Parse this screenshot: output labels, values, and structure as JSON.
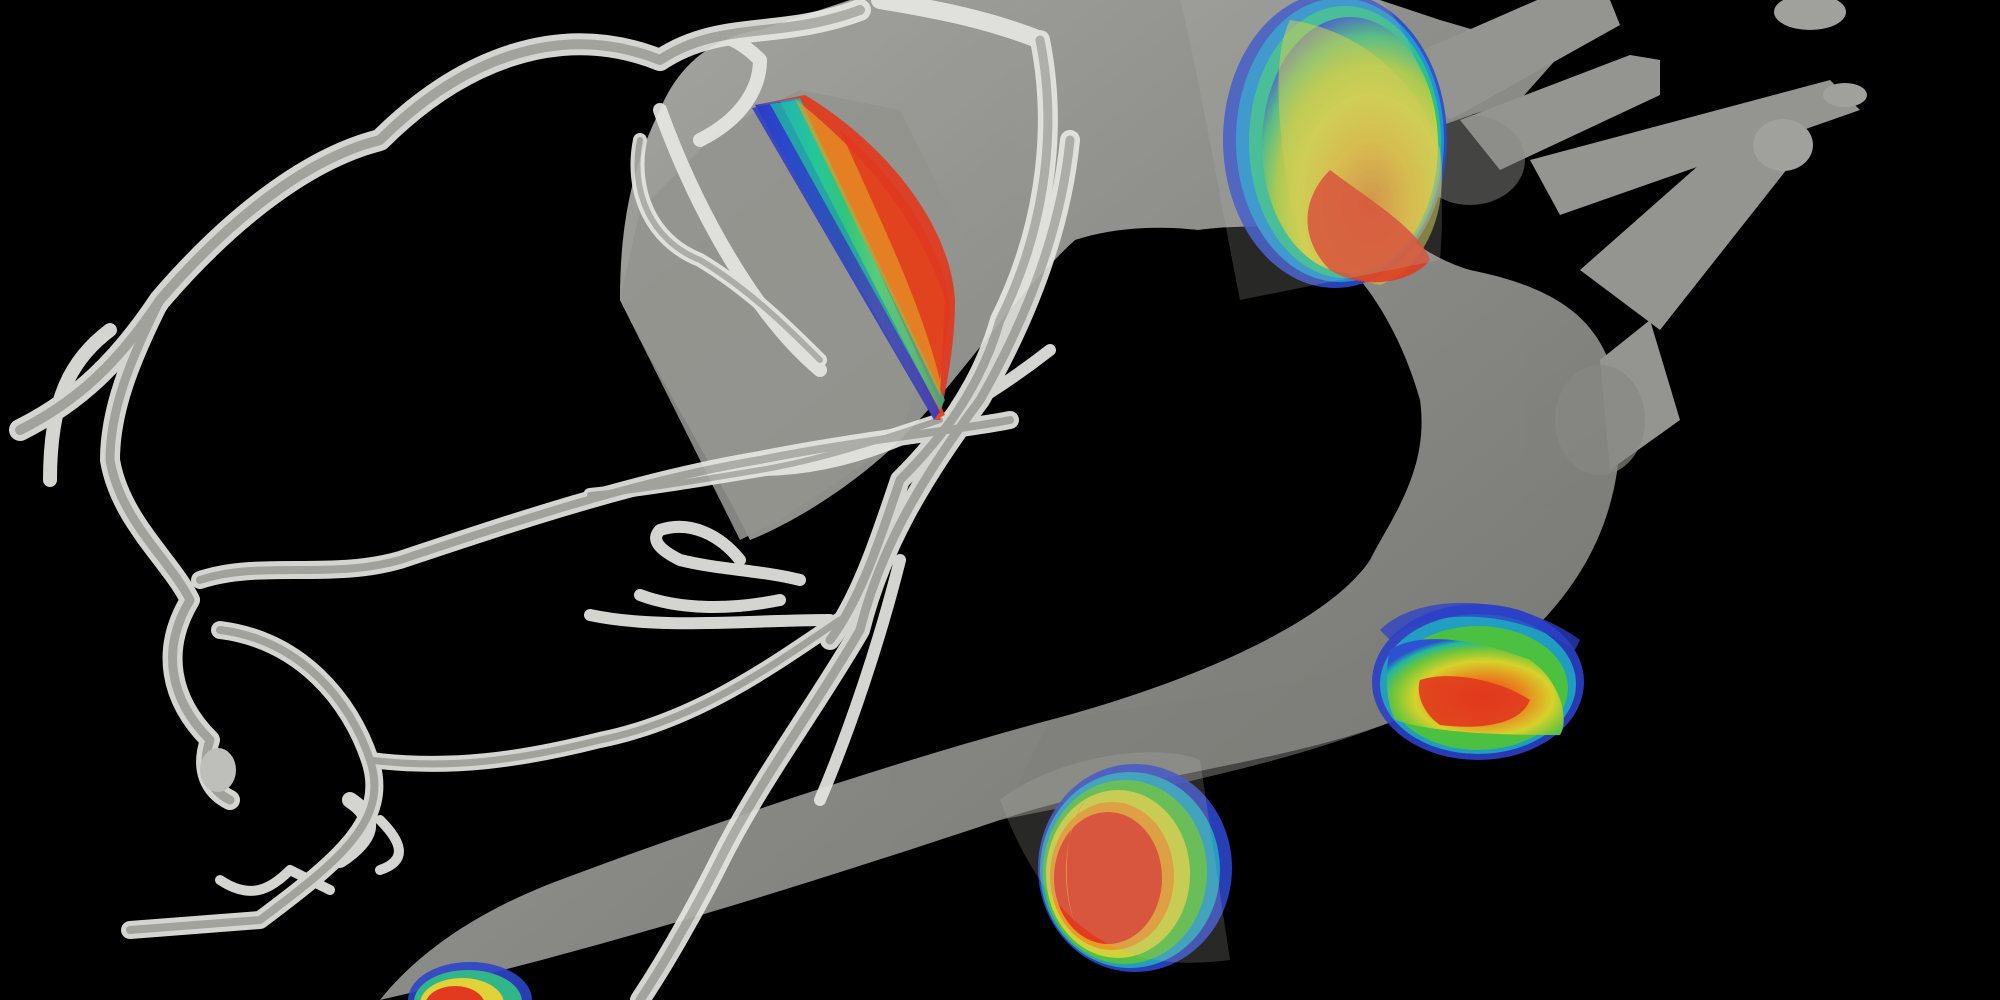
{
  "scene": {
    "background_color": "#000000",
    "surface_color": "#b5b5b0",
    "surface_opacity": 0.78,
    "colormap": [
      "#2b3cc8",
      "#1f8fe0",
      "#22c99a",
      "#56c236",
      "#d9d92e",
      "#f0a028",
      "#e03a1e"
    ]
  }
}
